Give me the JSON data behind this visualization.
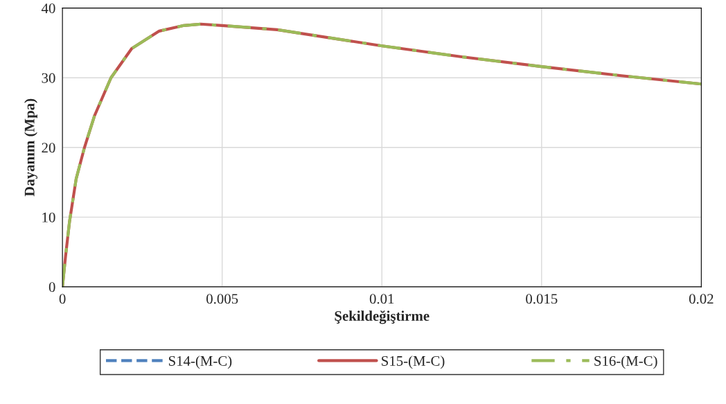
{
  "chart_data": {
    "type": "line",
    "xlabel": "Şekildeğiştirme",
    "ylabel": "Dayanım (Mpa)",
    "x": [
      0,
      0.0001,
      0.00022,
      0.00043,
      0.00069,
      0.001,
      0.00152,
      0.00217,
      0.00303,
      0.0038,
      0.00433,
      0.005,
      0.00672,
      0.00997,
      0.0125,
      0.015,
      0.0175,
      0.02
    ],
    "series": [
      {
        "name": "S14-(M-C)",
        "color": "#4f81bd",
        "line_style": "dashed",
        "values": [
          null,
          null,
          null,
          null,
          null,
          null,
          null,
          null,
          null,
          null,
          null,
          null,
          null,
          null,
          null,
          null,
          null,
          null
        ]
      },
      {
        "name": "S15-(M-C)",
        "color": "#c0504d",
        "line_style": "solid",
        "values": [
          0,
          4.5,
          9.3,
          15.5,
          20,
          24.5,
          30,
          34.2,
          36.7,
          37.5,
          37.7,
          37.5,
          36.9,
          34.6,
          33.0,
          31.6,
          30.3,
          29.1
        ]
      },
      {
        "name": "S16-(M-C)",
        "color": "#9bbb59",
        "line_style": "dashdot",
        "values": [
          0,
          4.5,
          9.3,
          15.5,
          20,
          24.5,
          30,
          34.2,
          36.7,
          37.5,
          37.7,
          37.5,
          36.9,
          34.6,
          33.0,
          31.6,
          30.3,
          29.1
        ]
      }
    ],
    "xlim": [
      0,
      0.02
    ],
    "xticks": [
      0,
      0.005,
      0.01,
      0.015,
      0.02
    ],
    "ylim": [
      0,
      40
    ],
    "yticks": [
      0,
      10,
      20,
      30,
      40
    ],
    "grid": true,
    "legend": "bottom"
  }
}
